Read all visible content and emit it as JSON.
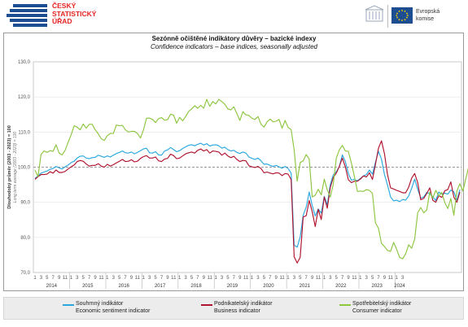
{
  "header": {
    "czso_logo_text": "ČESKÝ\nSTATISTICKÝ\nÚŘAD",
    "eu_logo_text": "Evropská\nkomise"
  },
  "chart_data": {
    "type": "line",
    "title": "Sezónně očištěné indikátory důvěry – bazické indexy",
    "subtitle": "Confidence indicators – base indices, seasonally adjusted",
    "ylabel": "Dlouhodobý průměr (2003 - 2023) = 100",
    "ylabel_secondary": "Long term average (2003 - 2023) = 100",
    "ylim": [
      70,
      130
    ],
    "yticks": [
      "70,0",
      "80,0",
      "90,0",
      "100,0",
      "110,0",
      "120,0",
      "130,0"
    ],
    "reference_line": 100,
    "x_month_ticks": [
      "1",
      "3",
      "5",
      "7",
      "9",
      "11"
    ],
    "x_last_ticks": [
      "1",
      "3"
    ],
    "years": [
      "2014",
      "2015",
      "2016",
      "2017",
      "2018",
      "2019",
      "2020",
      "2021",
      "2022",
      "2023",
      "2024"
    ],
    "legend_position": "bottom",
    "series": [
      {
        "name": "Souhrnný indikátor",
        "name_en": "Economic sentiment indicator",
        "color": "#29a8e0",
        "values": [
          96.8,
          97.5,
          98.3,
          98.6,
          98.9,
          99.4,
          99.6,
          100.2,
          99.8,
          99.5,
          100.1,
          100.6,
          101.3,
          101.7,
          102.6,
          103.1,
          103.2,
          102.6,
          102.4,
          102.7,
          102.8,
          103.4,
          103.1,
          102.8,
          103.2,
          102.9,
          103.4,
          103.9,
          104.2,
          104.6,
          104.1,
          104.0,
          104.3,
          103.8,
          104.2,
          104.7,
          105.2,
          105.4,
          104.1,
          104.0,
          104.4,
          103.5,
          103.4,
          104.6,
          104.9,
          105.6,
          105.0,
          104.4,
          104.7,
          105.3,
          105.8,
          106.2,
          106.4,
          106.1,
          106.5,
          106.8,
          106.3,
          106.7,
          106.0,
          106.3,
          106.4,
          106.1,
          105.4,
          105.7,
          105.0,
          104.6,
          104.8,
          104.2,
          103.9,
          104.3,
          104.0,
          102.9,
          102.5,
          102.2,
          102.6,
          101.8,
          100.8,
          100.9,
          100.5,
          100.2,
          100.5,
          100.1,
          99.7,
          100.2,
          99.6,
          98.3,
          77.8,
          77.2,
          80.1,
          86.3,
          88.6,
          92.9,
          89.1,
          86.1,
          88.1,
          86.9,
          91.7,
          89.3,
          95.1,
          97.8,
          98.7,
          100.2,
          103.5,
          101.6,
          98.2,
          96.3,
          96.5,
          96.1,
          96.8,
          97.5,
          97.9,
          99.2,
          98.0,
          101.4,
          104.5,
          102.3,
          97.9,
          94.9,
          91.5,
          90.4,
          90.6,
          90.2,
          90.8,
          90.6,
          91.8,
          94.0,
          96.6,
          93.7,
          91.2,
          91.5,
          92.8,
          92.4,
          91.6,
          90.5,
          92.9,
          92.3,
          92.6,
          92.3,
          93.5,
          93.0,
          90.6,
          93.6
        ]
      },
      {
        "name": "Podnikatelský indikátor",
        "name_en": "Business indicator",
        "color": "#b0132e",
        "values": [
          96.5,
          97.3,
          97.9,
          97.9,
          98.0,
          98.7,
          98.3,
          99.2,
          98.5,
          98.5,
          98.8,
          99.5,
          100.1,
          100.6,
          101.6,
          101.9,
          101.7,
          100.9,
          100.3,
          100.5,
          100.5,
          101.0,
          100.3,
          100.0,
          100.8,
          100.3,
          100.7,
          101.2,
          101.7,
          102.2,
          101.6,
          101.7,
          102.1,
          101.5,
          101.7,
          102.5,
          103.0,
          103.3,
          102.6,
          102.6,
          102.9,
          101.8,
          101.6,
          102.3,
          102.5,
          103.7,
          103.3,
          102.4,
          102.6,
          103.2,
          103.8,
          104.1,
          104.3,
          104.0,
          104.8,
          105.2,
          104.6,
          105.0,
          104.0,
          104.6,
          104.5,
          104.3,
          103.4,
          104.0,
          103.2,
          102.7,
          103.1,
          102.2,
          101.6,
          101.9,
          101.8,
          100.4,
          100.1,
          99.9,
          100.2,
          99.6,
          98.4,
          98.6,
          98.3,
          98.1,
          98.4,
          98.3,
          97.6,
          98.2,
          98.0,
          96.5,
          74.5,
          72.7,
          74.3,
          85.8,
          86.2,
          90.5,
          87.3,
          83.1,
          88.0,
          85.1,
          91.5,
          88.3,
          94.2,
          97.1,
          98.3,
          100.2,
          102.6,
          100.1,
          96.4,
          95.6,
          96.0,
          96.0,
          96.6,
          97.5,
          97.2,
          98.4,
          96.5,
          100.8,
          105.4,
          107.5,
          103.8,
          97.9,
          94.1,
          93.8,
          93.4,
          93.1,
          92.7,
          92.7,
          94.3,
          96.9,
          98.2,
          95.6,
          90.7,
          91.1,
          92.5,
          94.1,
          90.6,
          90.0,
          91.9,
          91.4,
          93.3,
          93.6,
          95.8,
          91.5,
          90.0,
          92.9
        ]
      },
      {
        "name": "Spotřebitelský indikátor",
        "name_en": "Consumer indicator",
        "color": "#8dc63f",
        "values": [
          99.2,
          97.3,
          103.6,
          104.6,
          104.2,
          104.7,
          104.5,
          106.4,
          104.0,
          103.5,
          104.8,
          107.1,
          109.2,
          111.8,
          111.4,
          110.6,
          112.3,
          111.1,
          112.2,
          112.2,
          110.6,
          109.5,
          108.1,
          107.6,
          109.0,
          109.6,
          109.6,
          112.0,
          111.8,
          111.9,
          110.6,
          110.0,
          110.2,
          110.2,
          109.6,
          108.3,
          110.6,
          113.9,
          114.0,
          113.6,
          112.7,
          113.8,
          114.1,
          113.4,
          113.5,
          115.1,
          114.8,
          112.5,
          114.2,
          113.2,
          114.4,
          115.9,
          116.6,
          117.5,
          116.8,
          117.6,
          116.8,
          119.3,
          117.3,
          118.7,
          118.0,
          119.3,
          118.7,
          117.9,
          116.6,
          116.3,
          117.2,
          115.3,
          113.3,
          115.8,
          114.9,
          114.7,
          113.9,
          113.6,
          114.4,
          112.2,
          111.4,
          112.9,
          113.7,
          112.9,
          113.1,
          113.6,
          111.1,
          113.3,
          111.3,
          110.7,
          104.9,
          96.0,
          101.3,
          101.8,
          103.6,
          102.3,
          91.5,
          92.0,
          93.7,
          92.1,
          96.6,
          93.5,
          91.5,
          95.2,
          102.6,
          104.9,
          106.2,
          104.6,
          104.5,
          101.2,
          97.4,
          93.1,
          93.2,
          93.1,
          93.6,
          93.4,
          92.5,
          84.1,
          82.6,
          78.3,
          77.4,
          76.3,
          76.0,
          78.6,
          76.6,
          74.3,
          73.9,
          75.3,
          77.9,
          76.9,
          79.5,
          87.0,
          88.5,
          87.0,
          87.8,
          92.9,
          91.2,
          93.4,
          91.8,
          92.8,
          89.9,
          88.2,
          91.1,
          86.3,
          93.2,
          95.3,
          93.2,
          96.8,
          100.4
        ]
      }
    ]
  }
}
